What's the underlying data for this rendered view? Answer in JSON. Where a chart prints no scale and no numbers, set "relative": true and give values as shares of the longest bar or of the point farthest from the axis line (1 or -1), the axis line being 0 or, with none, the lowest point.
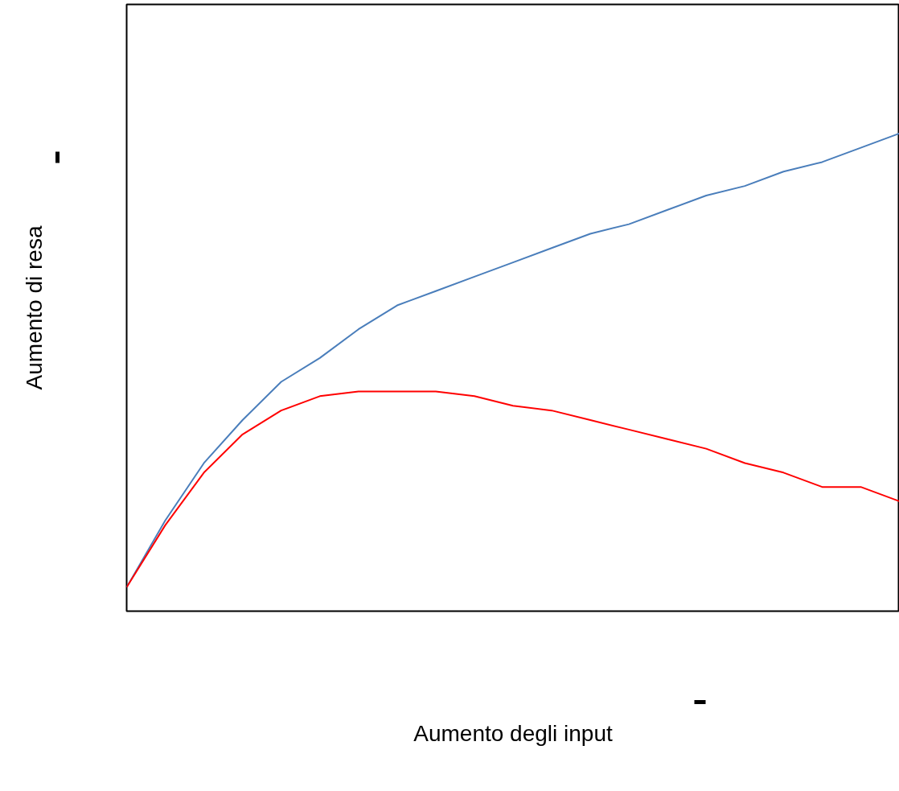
{
  "chart_data": {
    "type": "line",
    "relative": true,
    "xlabel": "Aumento degli input",
    "ylabel": "Aumento di resa",
    "grid": false,
    "marker": "none",
    "line_style": "solid",
    "categories": [
      null,
      null,
      null,
      null,
      null,
      null,
      null,
      null,
      null,
      null,
      null,
      null,
      null,
      null,
      null,
      null,
      null,
      null,
      null,
      null,
      null
    ],
    "series": [
      {
        "color": "#4a7ebb",
        "values": [
          0.05,
          0.19,
          0.31,
          0.4,
          0.48,
          0.53,
          0.59,
          0.64,
          0.67,
          0.7,
          0.73,
          0.76,
          0.79,
          0.81,
          0.84,
          0.87,
          0.89,
          0.92,
          0.94,
          0.97,
          1.0
        ]
      },
      {
        "color": "#ff0000",
        "values": [
          0.05,
          0.18,
          0.29,
          0.37,
          0.42,
          0.45,
          0.46,
          0.46,
          0.46,
          0.45,
          0.43,
          0.42,
          0.4,
          0.38,
          0.36,
          0.34,
          0.31,
          0.29,
          0.26,
          0.26,
          0.23
        ]
      }
    ]
  }
}
